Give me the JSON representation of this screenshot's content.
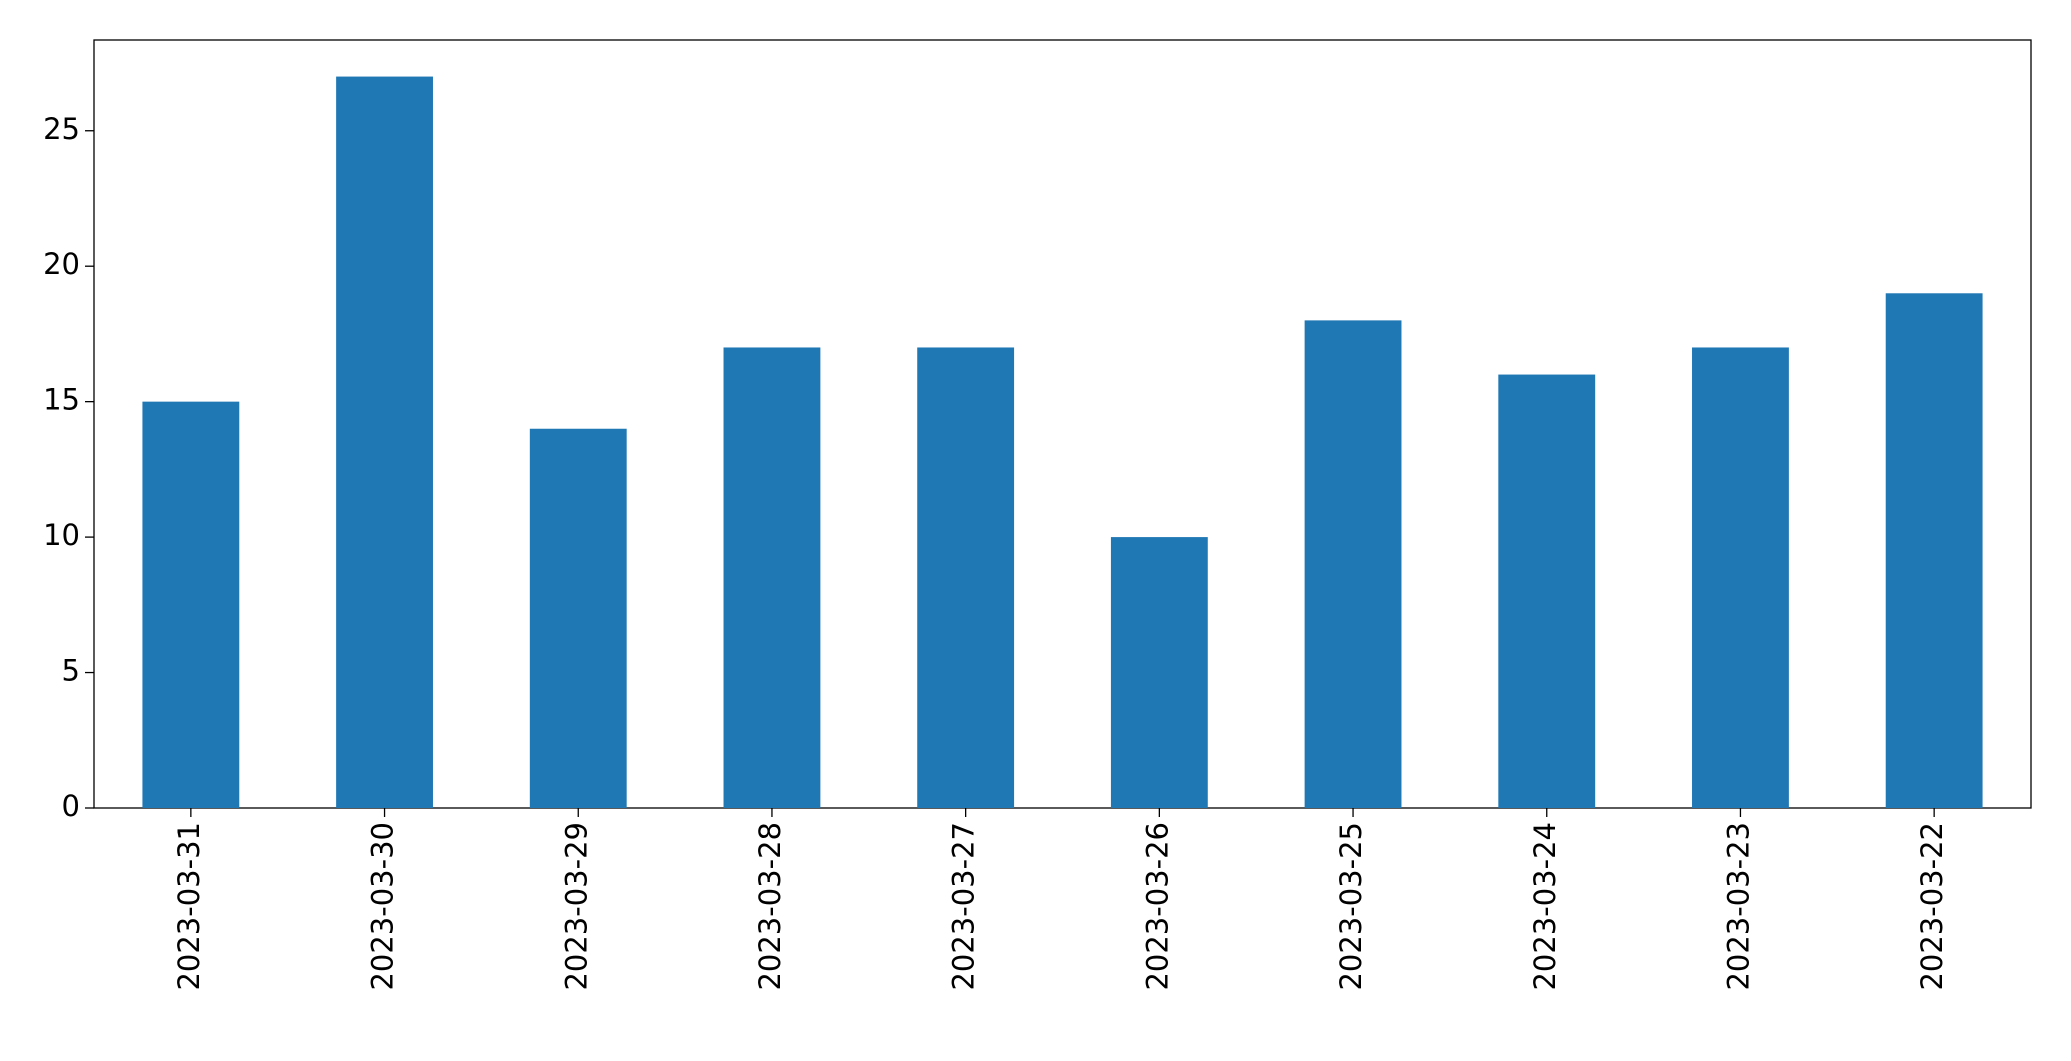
{
  "chart_data": {
    "type": "bar",
    "categories": [
      "2023-03-31",
      "2023-03-30",
      "2023-03-29",
      "2023-03-28",
      "2023-03-27",
      "2023-03-26",
      "2023-03-25",
      "2023-03-24",
      "2023-03-23",
      "2023-03-22"
    ],
    "values": [
      15,
      27,
      14,
      17,
      17,
      10,
      18,
      16,
      17,
      19
    ],
    "color": "#1f77b4",
    "ylim": [
      0,
      28.35
    ],
    "yticks": [
      0,
      5,
      10,
      15,
      20,
      25
    ],
    "grid": false
  }
}
